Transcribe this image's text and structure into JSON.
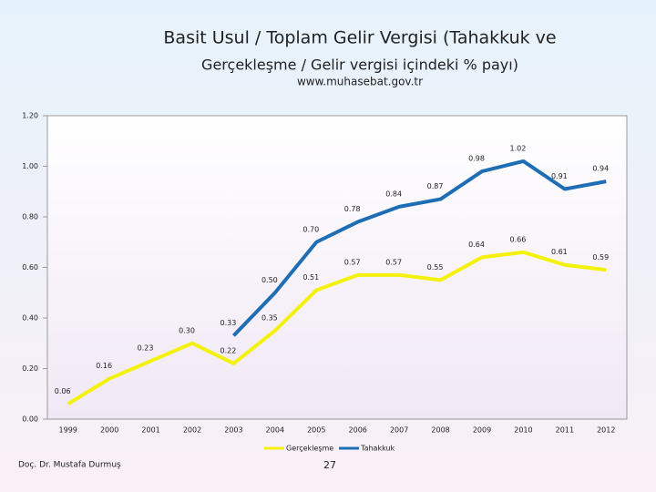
{
  "chart_data": {
    "type": "line",
    "title": [
      "Basit Usul / Toplam Gelir Vergisi (Tahakkuk ve",
      "Gerçekleşme / Gelir vergisi içindeki % payı)"
    ],
    "subtitle": "www.muhasebat.gov.tr",
    "categories": [
      "1999",
      "2000",
      "2001",
      "2002",
      "2003",
      "2004",
      "2005",
      "2006",
      "2007",
      "2008",
      "2009",
      "2010",
      "2011",
      "2012"
    ],
    "series": [
      {
        "name": "Gerçekleşme",
        "color": "#f4f20c",
        "values": [
          0.06,
          0.16,
          0.23,
          0.3,
          0.22,
          0.35,
          0.51,
          0.57,
          0.57,
          0.55,
          0.64,
          0.66,
          0.61,
          0.59
        ],
        "value_labels": [
          "0.06",
          "0.16",
          "0.23",
          "0.30",
          "0.22",
          "0.35",
          "0.51",
          "0.57",
          "0.57",
          "0.55",
          "0.64",
          "0.66",
          "0.61",
          "0.59"
        ]
      },
      {
        "name": "Tahakkuk",
        "color": "#1f6db4",
        "values": [
          null,
          null,
          null,
          null,
          0.33,
          0.5,
          0.7,
          0.78,
          0.84,
          0.87,
          0.98,
          1.02,
          0.91,
          0.94
        ],
        "value_labels": [
          null,
          null,
          null,
          null,
          "0.33",
          "0.50",
          "0.70",
          "0.78",
          "0.84",
          "0.87",
          "0.98",
          "1.02",
          "0.91",
          "0.94"
        ]
      }
    ],
    "ylim": [
      0,
      1.2
    ],
    "yticks": [
      {
        "value": 0,
        "label": "0.00"
      },
      {
        "value": 0.2,
        "label": "0.20"
      },
      {
        "value": 0.4,
        "label": "0.40"
      },
      {
        "value": 0.6,
        "label": "0.60"
      },
      {
        "value": 0.8,
        "label": "0.80"
      },
      {
        "value": 1.0,
        "label": "1.00"
      },
      {
        "value": 1.2,
        "label": "1.20"
      }
    ],
    "grid": false,
    "legend": "bottom",
    "footer": "Doç. Dr. Mustafa Durmuş",
    "page_number": "27"
  }
}
